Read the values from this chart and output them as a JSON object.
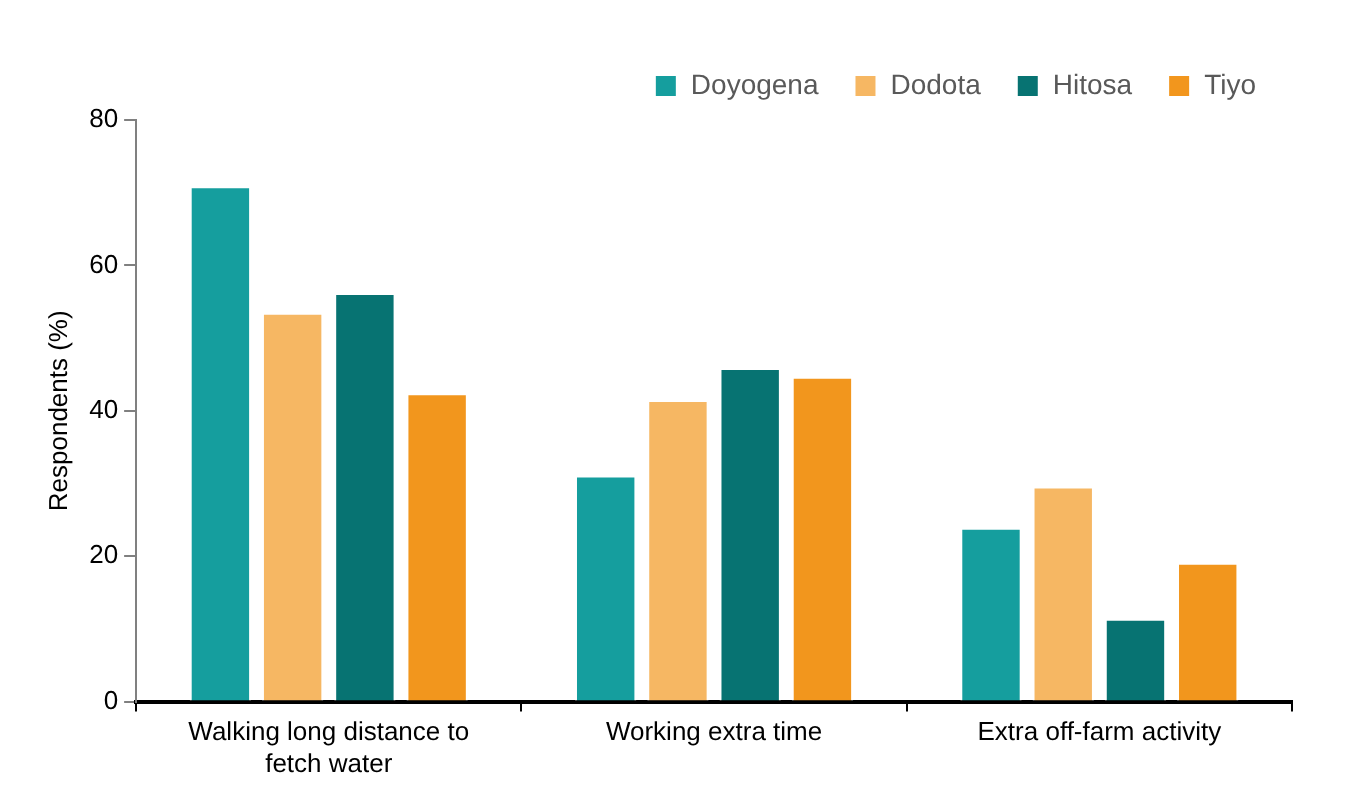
{
  "chart_data": {
    "type": "bar",
    "ylabel": "Respondents (%)",
    "categories": [
      "Walking long distance to fetch water",
      "Working extra time",
      "Extra off-farm activity"
    ],
    "series": [
      {
        "name": "Doyogena",
        "color": "#159e9e",
        "values": [
          70.9,
          31.1,
          23.9
        ]
      },
      {
        "name": "Dodota",
        "color": "#f6b763",
        "values": [
          53.5,
          41.5,
          29.6
        ]
      },
      {
        "name": "Hitosa",
        "color": "#077372",
        "values": [
          56.2,
          45.9,
          11.4
        ]
      },
      {
        "name": "Tiyo",
        "color": "#f2961d",
        "values": [
          42.4,
          44.7,
          19.1
        ]
      }
    ],
    "ylim": [
      0,
      80
    ],
    "yticks": [
      0,
      20,
      40,
      60,
      80
    ],
    "grid": false,
    "legend": "top right"
  }
}
